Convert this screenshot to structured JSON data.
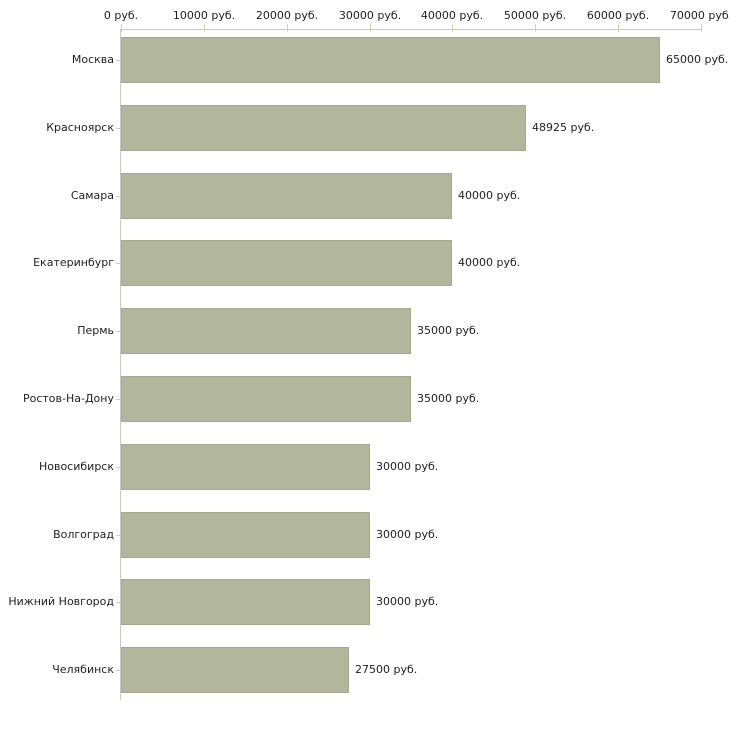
{
  "chart_data": {
    "type": "bar",
    "orientation": "horizontal",
    "title": "",
    "xlabel": "",
    "ylabel": "",
    "unit_suffix": " руб.",
    "categories": [
      "Москва",
      "Красноярск",
      "Самара",
      "Екатеринбург",
      "Пермь",
      "Ростов-На-Дону",
      "Новосибирск",
      "Волгоград",
      "Нижний Новгород",
      "Челябинск"
    ],
    "values": [
      65000,
      48925,
      40000,
      40000,
      35000,
      35000,
      30000,
      30000,
      30000,
      27500
    ],
    "value_labels": [
      "65000 руб.",
      "48925 руб.",
      "40000 руб.",
      "40000 руб.",
      "35000 руб.",
      "35000 руб.",
      "30000 руб.",
      "30000 руб.",
      "30000 руб.",
      "27500 руб."
    ],
    "x_tick_values": [
      0,
      10000,
      20000,
      30000,
      40000,
      50000,
      60000,
      70000
    ],
    "x_tick_labels": [
      "0 руб.",
      "10000 руб.",
      "20000 руб.",
      "30000 руб.",
      "40000 руб.",
      "50000 руб.",
      "60000 руб.",
      "70000 руб."
    ],
    "xlim": [
      0,
      70000
    ],
    "grid": false,
    "legend": false,
    "axis_position": "top",
    "colors": {
      "bar_fill": "#b1b69d",
      "bar_border": "#a3a98c",
      "axis_line": "#c9c9c4",
      "x_tick_mark": "#d4d4a9",
      "y_tick_mark": "#cdcdb8",
      "text": "#1f1f1f",
      "background": "#ffffff"
    }
  }
}
